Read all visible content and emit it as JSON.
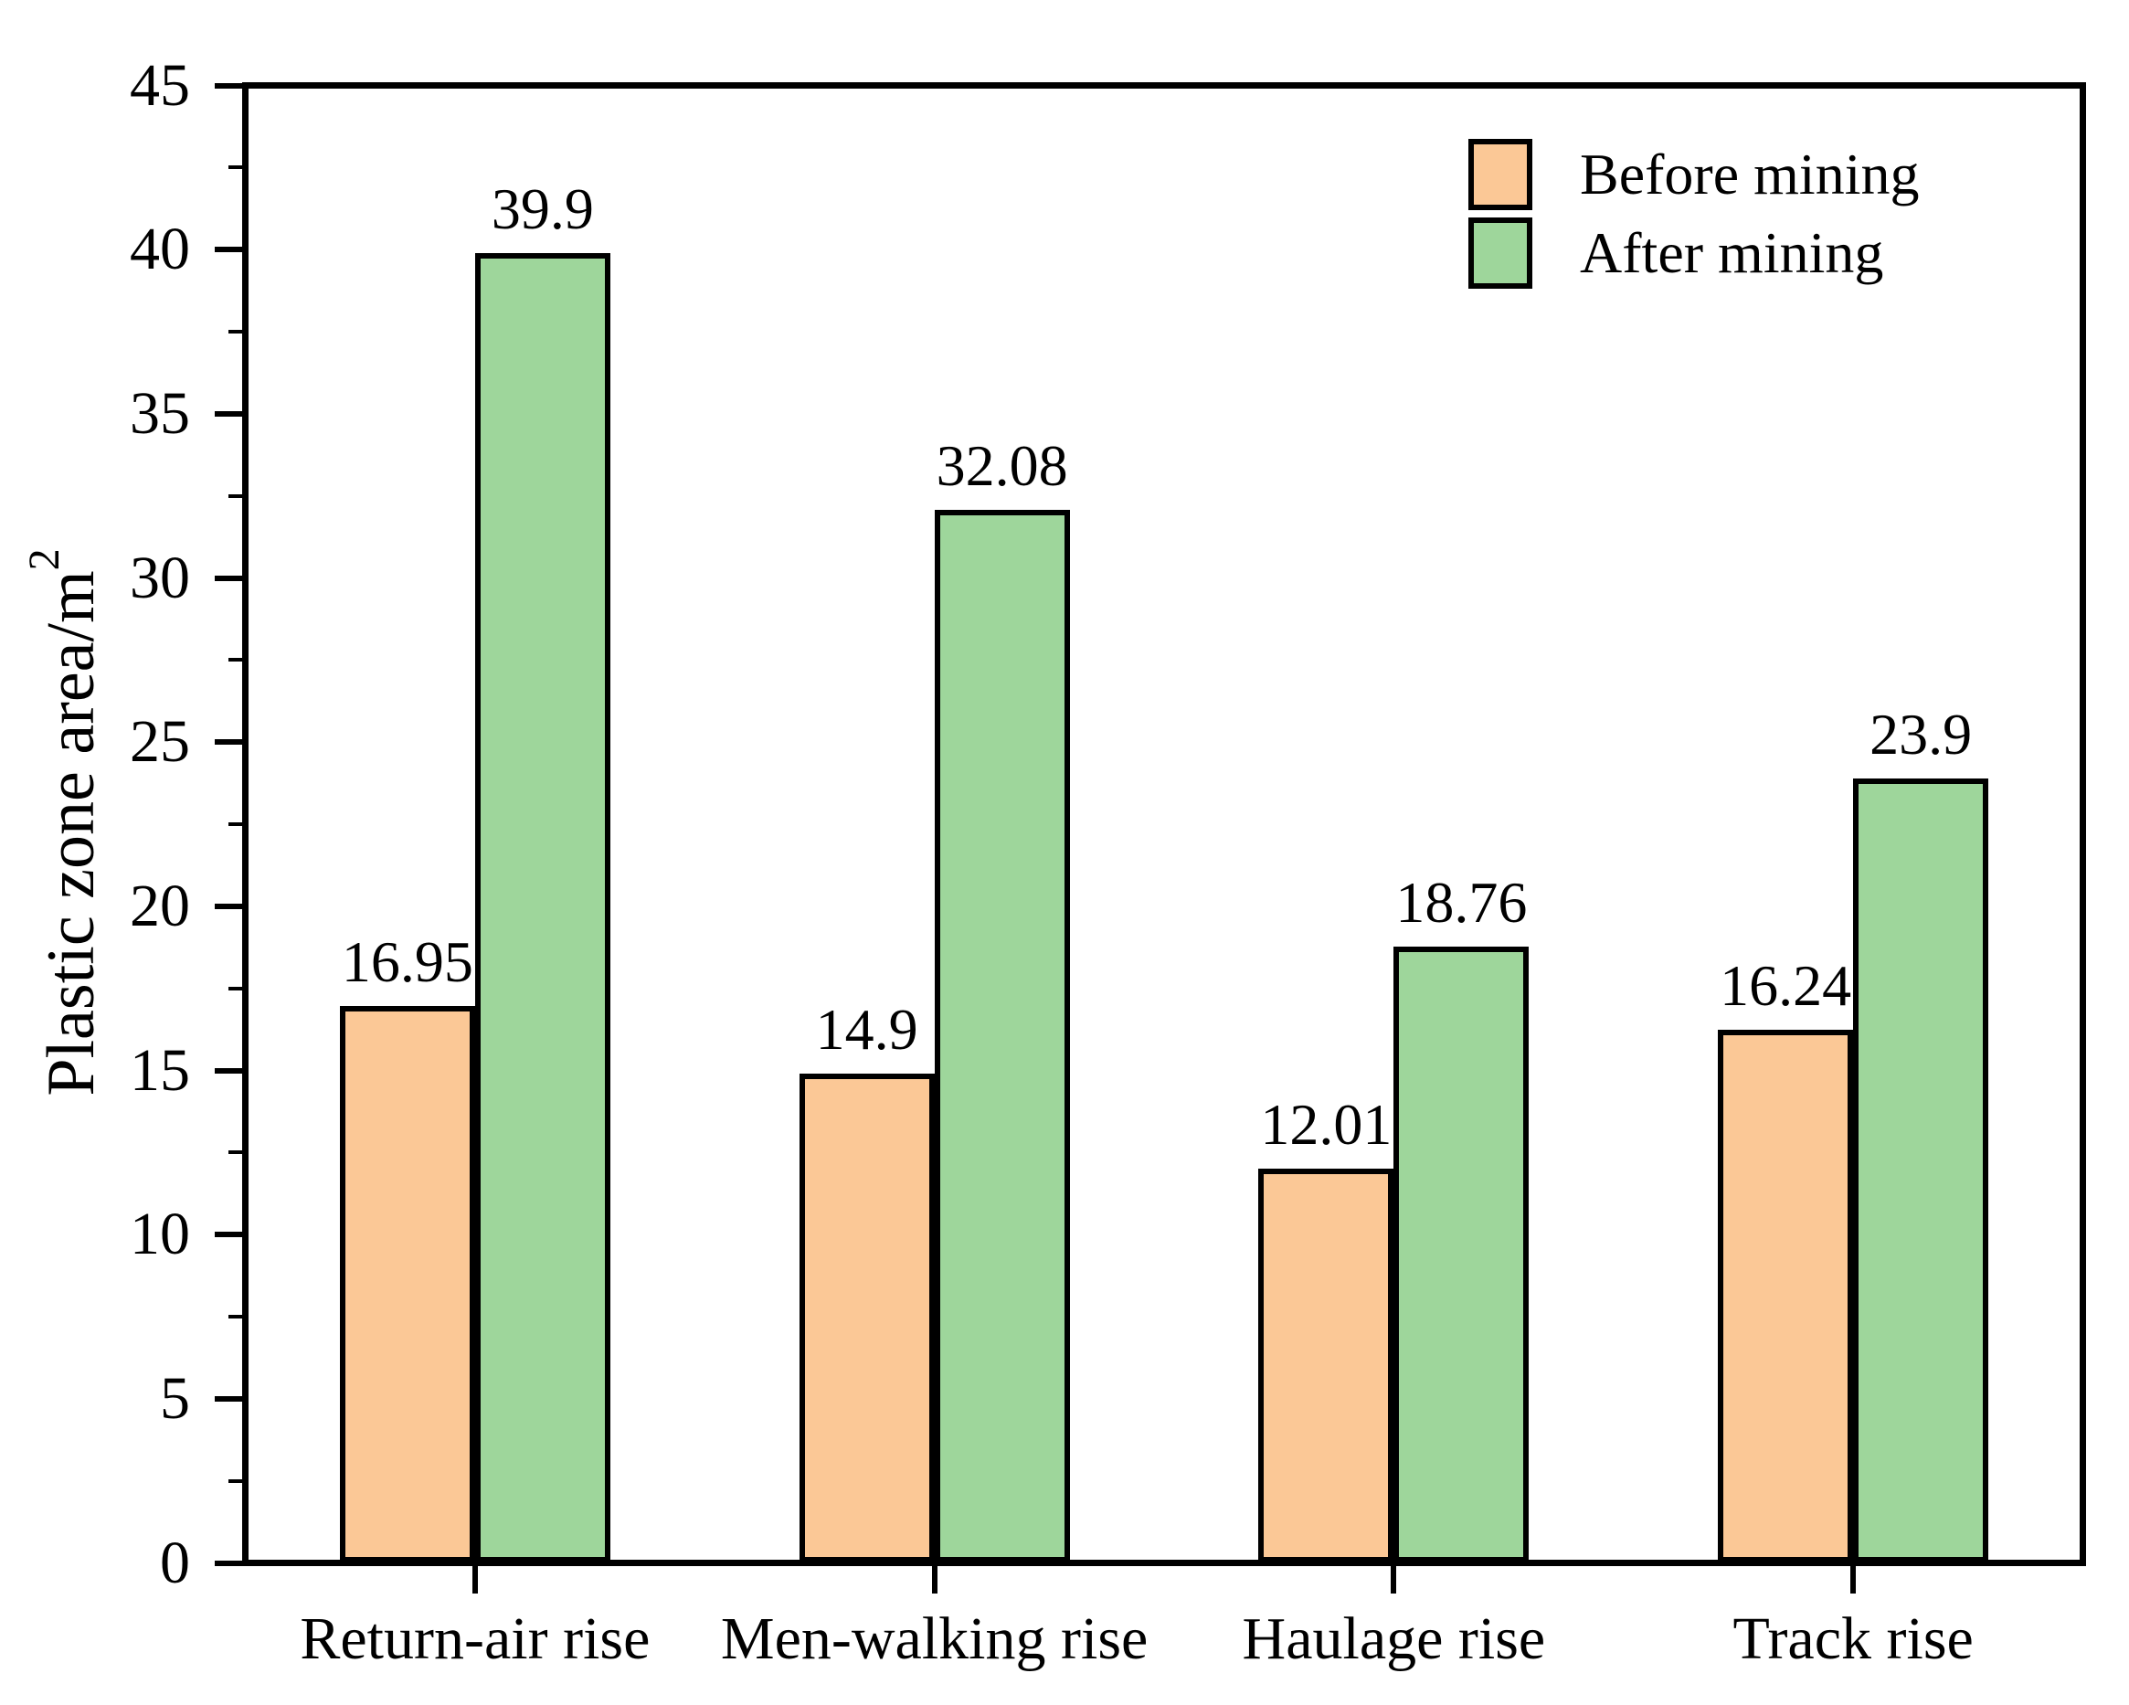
{
  "chart_data": {
    "type": "bar",
    "title": "",
    "ylabel": "Plastic zone area/m²",
    "ylabel_main": "Plastic zone area/m",
    "ylabel_exponent": "2",
    "xlabel": "",
    "ylim": [
      0,
      45
    ],
    "yticks": [
      0,
      5,
      10,
      15,
      20,
      25,
      30,
      35,
      40,
      45
    ],
    "y_minor_tick_step": 2.5,
    "grid": false,
    "legend_position": "top-right-inside",
    "categories": [
      "Return-air rise",
      "Men-walking rise",
      "Haulage rise",
      "Track rise"
    ],
    "series": [
      {
        "name": "Before mining",
        "color": "#FBC896",
        "edge_color": "#000000",
        "values": [
          16.95,
          14.9,
          12.01,
          16.24
        ],
        "value_labels": [
          "16.95",
          "14.9",
          "12.01",
          "16.24"
        ]
      },
      {
        "name": "After mining",
        "color": "#9ED69B",
        "edge_color": "#000000",
        "values": [
          39.9,
          32.08,
          18.76,
          23.9
        ],
        "value_labels": [
          "39.9",
          "32.08",
          "18.76",
          "23.9"
        ]
      }
    ]
  }
}
